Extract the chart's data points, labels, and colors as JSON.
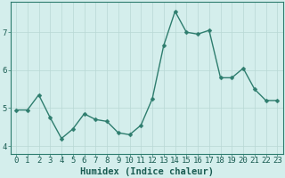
{
  "x": [
    0,
    1,
    2,
    3,
    4,
    5,
    6,
    7,
    8,
    9,
    10,
    11,
    12,
    13,
    14,
    15,
    16,
    17,
    18,
    19,
    20,
    21,
    22,
    23
  ],
  "y": [
    4.95,
    4.95,
    5.35,
    4.75,
    4.2,
    4.45,
    4.85,
    4.7,
    4.65,
    4.35,
    4.3,
    4.55,
    5.25,
    6.65,
    7.55,
    7.0,
    6.95,
    7.05,
    5.8,
    5.8,
    6.05,
    5.5,
    5.2,
    5.2
  ],
  "line_color": "#2e7d6e",
  "marker": "D",
  "marker_size": 2.5,
  "bg_color": "#d4eeec",
  "xlabel": "Humidex (Indice chaleur)",
  "ylim": [
    3.8,
    7.8
  ],
  "xlim": [
    -0.5,
    23.5
  ],
  "yticks": [
    4,
    5,
    6,
    7
  ],
  "xticks": [
    0,
    1,
    2,
    3,
    4,
    5,
    6,
    7,
    8,
    9,
    10,
    11,
    12,
    13,
    14,
    15,
    16,
    17,
    18,
    19,
    20,
    21,
    22,
    23
  ],
  "tick_label_fontsize": 6.5,
  "xlabel_fontsize": 7.5,
  "label_color": "#1a5c52",
  "spine_color": "#2e7d6e",
  "grid_color": "#b8d8d5",
  "line_width": 1.0
}
